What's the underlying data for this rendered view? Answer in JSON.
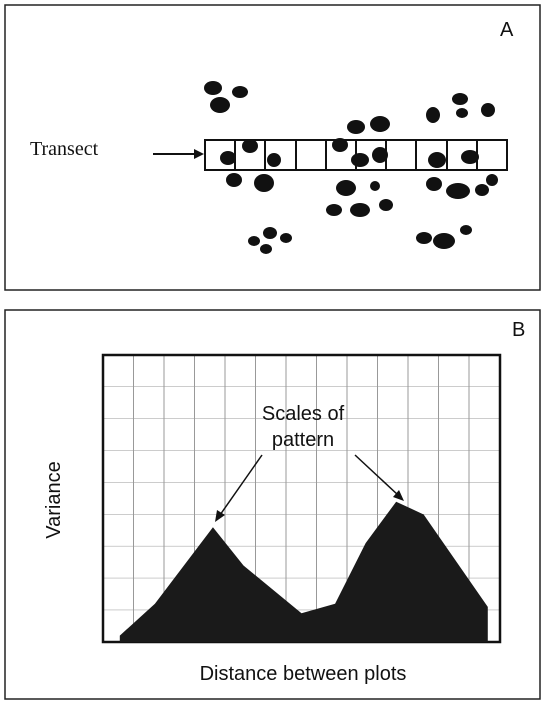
{
  "panel_a": {
    "label": "A",
    "transect_label": "Transect"
  },
  "chart_data": {
    "type": "area",
    "panel_label": "B",
    "xlabel": "Distance between plots",
    "ylabel": "Variance",
    "annotation": [
      "Scales of",
      "pattern"
    ],
    "x": [
      0.55,
      1.7,
      3.6,
      4.6,
      6.5,
      7.6,
      8.6,
      9.6,
      10.5,
      12.6
    ],
    "values": [
      0.2,
      1.2,
      3.6,
      2.4,
      0.9,
      1.2,
      3.1,
      4.4,
      4.0,
      1.1
    ],
    "xlim": [
      0,
      13
    ],
    "ylim": [
      0,
      9
    ],
    "color": "#1a1a1a"
  }
}
